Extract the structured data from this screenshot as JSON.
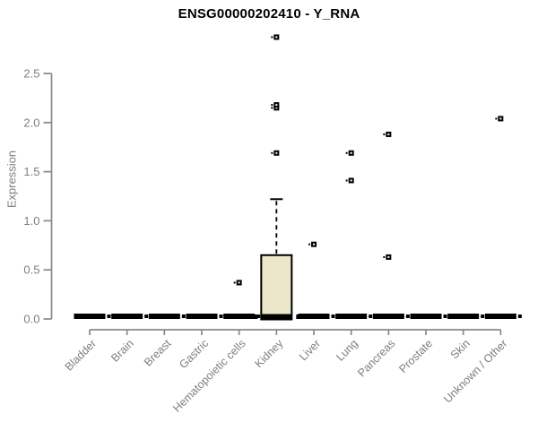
{
  "chart_data": {
    "type": "box",
    "title": "ENSG00000202410 - Y_RNA",
    "ylabel": "Expression",
    "xlabel": "",
    "ylim": [
      0,
      2.9
    ],
    "grid": false,
    "legend": "none",
    "ytick_labels": [
      "0.0",
      "0.5",
      "1.0",
      "1.5",
      "2.0",
      "2.5"
    ],
    "ytick_values": [
      0,
      0.5,
      1.0,
      1.5,
      2.0,
      2.5
    ],
    "categories": [
      "Bladder",
      "Brain",
      "Breast",
      "Gastric",
      "Hematopoietic cells",
      "Kidney",
      "Liver",
      "Lung",
      "Pancreas",
      "Prostate",
      "Skin",
      "Unknown / Other"
    ],
    "boxes": [
      {
        "category": "Bladder",
        "q1": 0,
        "median": 0.02,
        "q3": 0.03,
        "whisker_low": 0,
        "whisker_high": 0.03,
        "outliers": []
      },
      {
        "category": "Brain",
        "q1": 0,
        "median": 0.02,
        "q3": 0.03,
        "whisker_low": 0,
        "whisker_high": 0.03,
        "outliers": []
      },
      {
        "category": "Breast",
        "q1": 0,
        "median": 0.02,
        "q3": 0.03,
        "whisker_low": 0,
        "whisker_high": 0.03,
        "outliers": []
      },
      {
        "category": "Gastric",
        "q1": 0,
        "median": 0.02,
        "q3": 0.03,
        "whisker_low": 0,
        "whisker_high": 0.03,
        "outliers": []
      },
      {
        "category": "Hematopoietic cells",
        "q1": 0,
        "median": 0.02,
        "q3": 0.03,
        "whisker_low": 0,
        "whisker_high": 0.03,
        "outliers": [
          0.37
        ]
      },
      {
        "category": "Kidney",
        "q1": 0,
        "median": 0.02,
        "q3": 0.65,
        "whisker_low": 0,
        "whisker_high": 1.22,
        "outliers": [
          1.69,
          2.15,
          2.18,
          2.87
        ]
      },
      {
        "category": "Liver",
        "q1": 0,
        "median": 0.02,
        "q3": 0.03,
        "whisker_low": 0,
        "whisker_high": 0.03,
        "outliers": [
          0.76
        ]
      },
      {
        "category": "Lung",
        "q1": 0,
        "median": 0.02,
        "q3": 0.03,
        "whisker_low": 0,
        "whisker_high": 0.03,
        "outliers": [
          1.41,
          1.69
        ]
      },
      {
        "category": "Pancreas",
        "q1": 0,
        "median": 0.02,
        "q3": 0.03,
        "whisker_low": 0,
        "whisker_high": 0.03,
        "outliers": [
          0.63,
          1.88
        ]
      },
      {
        "category": "Prostate",
        "q1": 0,
        "median": 0.02,
        "q3": 0.03,
        "whisker_low": 0,
        "whisker_high": 0.03,
        "outliers": []
      },
      {
        "category": "Skin",
        "q1": 0,
        "median": 0.02,
        "q3": 0.03,
        "whisker_low": 0,
        "whisker_high": 0.03,
        "outliers": []
      },
      {
        "category": "Unknown / Other",
        "q1": 0,
        "median": 0.02,
        "q3": 0.03,
        "whisker_low": 0,
        "whisker_high": 0.03,
        "outliers": [
          2.04
        ]
      }
    ],
    "colors": {
      "box_fill": "#ECE6CB",
      "box_border": "#000000",
      "median": "#000000",
      "point": "#000000",
      "point_center": "#FFFFFF",
      "axis": "#898989",
      "tick_text": "#7E7E7E",
      "title_text": "#000000",
      "background": "#FFFFFF"
    }
  }
}
